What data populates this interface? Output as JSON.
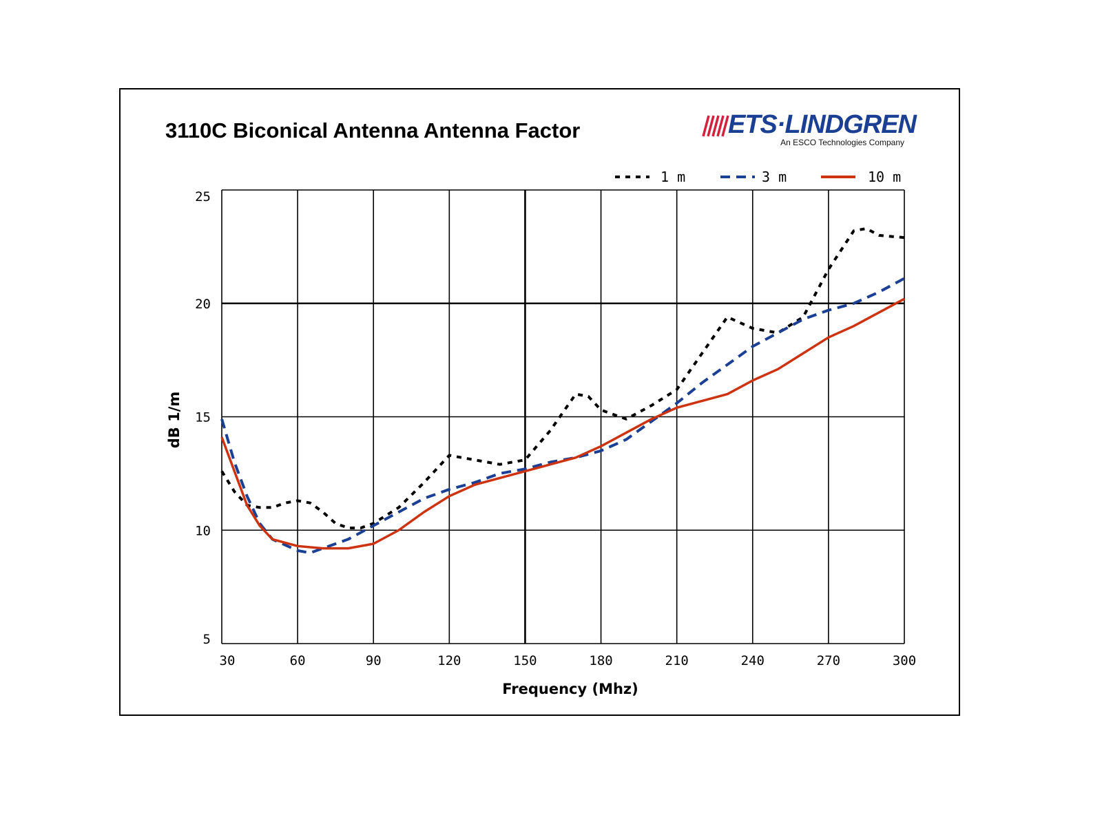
{
  "logo": {
    "main": "ETS·LINDGREN",
    "sub": "An ESCO Technologies Company"
  },
  "chart_data": {
    "type": "line",
    "title": "3110C Biconical Antenna Antenna Factor",
    "xlabel": "Frequency (Mhz)",
    "ylabel": "dB 1/m",
    "xlim": [
      30,
      300
    ],
    "ylim": [
      5,
      25
    ],
    "xticks": [
      30,
      60,
      90,
      120,
      150,
      180,
      210,
      240,
      270,
      300
    ],
    "yticks": [
      5,
      10,
      15,
      20,
      25
    ],
    "grid": true,
    "legend_position": "top-right",
    "series": [
      {
        "name": "1 m",
        "color": "#000000",
        "dash": "dotted",
        "x": [
          30,
          35,
          40,
          45,
          50,
          55,
          60,
          65,
          70,
          75,
          80,
          85,
          90,
          100,
          110,
          120,
          130,
          140,
          150,
          160,
          170,
          175,
          180,
          190,
          200,
          210,
          220,
          230,
          240,
          250,
          260,
          270,
          280,
          285,
          290,
          300
        ],
        "y": [
          12.6,
          11.7,
          11.1,
          11.0,
          11.0,
          11.2,
          11.3,
          11.2,
          10.8,
          10.3,
          10.1,
          10.1,
          10.3,
          11.0,
          12.1,
          13.3,
          13.1,
          12.9,
          13.1,
          14.4,
          16.0,
          15.9,
          15.3,
          14.9,
          15.5,
          16.2,
          17.8,
          19.4,
          18.9,
          18.7,
          19.4,
          21.5,
          23.2,
          23.3,
          23.0,
          22.9
        ]
      },
      {
        "name": "3 m",
        "color": "#1a3f93",
        "dash": "dashed",
        "x": [
          30,
          35,
          40,
          45,
          50,
          60,
          65,
          70,
          80,
          90,
          100,
          110,
          120,
          130,
          140,
          150,
          160,
          170,
          180,
          190,
          200,
          210,
          220,
          230,
          240,
          250,
          260,
          270,
          280,
          290,
          300
        ],
        "y": [
          14.9,
          13.0,
          11.5,
          10.3,
          9.6,
          9.1,
          9.0,
          9.2,
          9.6,
          10.2,
          10.8,
          11.4,
          11.8,
          12.1,
          12.5,
          12.7,
          13.0,
          13.2,
          13.5,
          14.0,
          14.8,
          15.6,
          16.5,
          17.3,
          18.1,
          18.7,
          19.3,
          19.7,
          20.0,
          20.5,
          21.1
        ]
      },
      {
        "name": "10 m",
        "color": "#cc3311",
        "dash": "solid",
        "x": [
          30,
          35,
          40,
          45,
          50,
          60,
          70,
          80,
          90,
          100,
          110,
          120,
          130,
          140,
          150,
          160,
          170,
          180,
          190,
          200,
          210,
          220,
          230,
          240,
          250,
          260,
          270,
          280,
          290,
          300
        ],
        "y": [
          14.1,
          12.6,
          11.1,
          10.2,
          9.6,
          9.3,
          9.2,
          9.2,
          9.4,
          10.0,
          10.8,
          11.5,
          12.0,
          12.3,
          12.6,
          12.9,
          13.2,
          13.7,
          14.3,
          14.9,
          15.4,
          15.7,
          16.0,
          16.6,
          17.1,
          17.8,
          18.5,
          19.0,
          19.6,
          20.2
        ]
      }
    ]
  }
}
